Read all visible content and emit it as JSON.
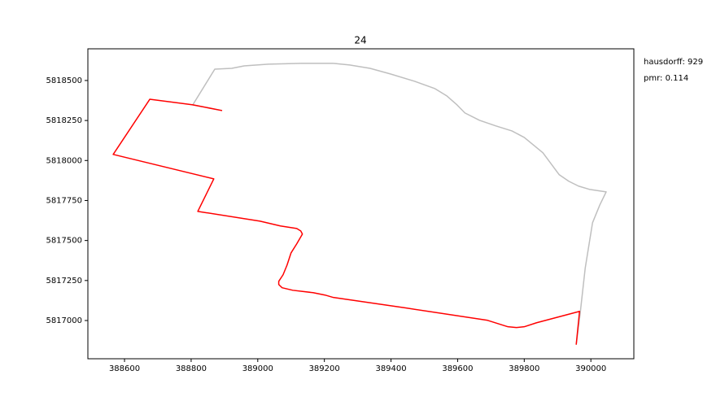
{
  "chart_data": {
    "type": "line",
    "title": "24",
    "annotations": [
      "hausdorff: 929",
      "pmr: 0.114"
    ],
    "xlim": [
      388490,
      390129
    ],
    "ylim": [
      5816761,
      5818698
    ],
    "xticks": [
      388600,
      388800,
      389000,
      389200,
      389400,
      389600,
      389800,
      390000
    ],
    "yticks": [
      5817000,
      5817250,
      5817500,
      5817750,
      5818000,
      5818250,
      5818500
    ],
    "grid": false,
    "series": [
      {
        "color": "#bfbfbf",
        "x": [
          388893,
          388805,
          388871,
          388922,
          388959,
          389032,
          389129,
          389227,
          389276,
          389337,
          389398,
          389471,
          389532,
          389568,
          389598,
          389622,
          389666,
          389715,
          389763,
          389800,
          389856,
          389905,
          389934,
          389963,
          389995,
          390046,
          390027,
          390005,
          389983,
          389968,
          389956
        ],
        "values": [
          5818312,
          5818348,
          5818571,
          5818576,
          5818591,
          5818602,
          5818607,
          5818607,
          5818597,
          5818576,
          5818541,
          5818495,
          5818449,
          5818403,
          5818348,
          5818297,
          5818251,
          5818216,
          5818185,
          5818144,
          5818048,
          5817911,
          5817870,
          5817840,
          5817820,
          5817804,
          5817723,
          5817611,
          5817327,
          5817047,
          5816849
        ]
      },
      {
        "color": "#ff0000",
        "x": [
          388893,
          388805,
          388676,
          388566,
          388868,
          388820,
          389007,
          389068,
          389117,
          389129,
          389134,
          389117,
          389100,
          389088,
          389076,
          389063,
          389063,
          389073,
          389105,
          389166,
          389202,
          389227,
          389446,
          389690,
          389751,
          389776,
          389800,
          389837,
          389966,
          389956
        ],
        "values": [
          5818312,
          5818348,
          5818383,
          5818038,
          5817885,
          5817682,
          5817621,
          5817591,
          5817575,
          5817560,
          5817540,
          5817479,
          5817423,
          5817347,
          5817286,
          5817245,
          5817225,
          5817205,
          5817189,
          5817174,
          5817159,
          5817144,
          5817078,
          5817001,
          5816961,
          5816956,
          5816961,
          5816986,
          5817057,
          5816849
        ]
      }
    ]
  }
}
